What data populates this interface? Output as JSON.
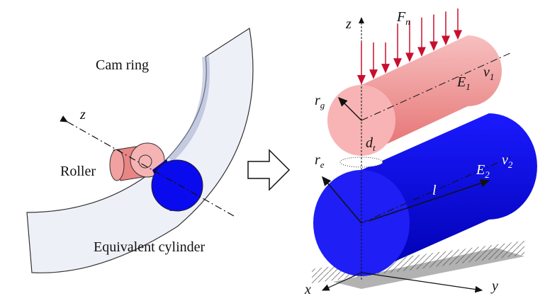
{
  "left": {
    "cam_ring": "Cam ring",
    "axis_z": "z",
    "roller": "Roller",
    "equivalent": "Equivalent cylinder"
  },
  "right": {
    "force": {
      "symbol": "F",
      "sub": "n"
    },
    "axis_z": "z",
    "axis_x": "x",
    "axis_y": "y",
    "upper": {
      "modulus": {
        "symbol": "E",
        "sub": "1"
      },
      "poisson": {
        "symbol": "ν",
        "sub": "1"
      },
      "radius": {
        "symbol": "r",
        "sub": "g"
      }
    },
    "gap": {
      "symbol": "d",
      "sub": "t"
    },
    "lower": {
      "modulus": {
        "symbol": "E",
        "sub": "2"
      },
      "poisson": {
        "symbol": "ν",
        "sub": "2"
      },
      "radius": {
        "symbol": "r",
        "sub": "e"
      }
    },
    "length": "l"
  }
}
